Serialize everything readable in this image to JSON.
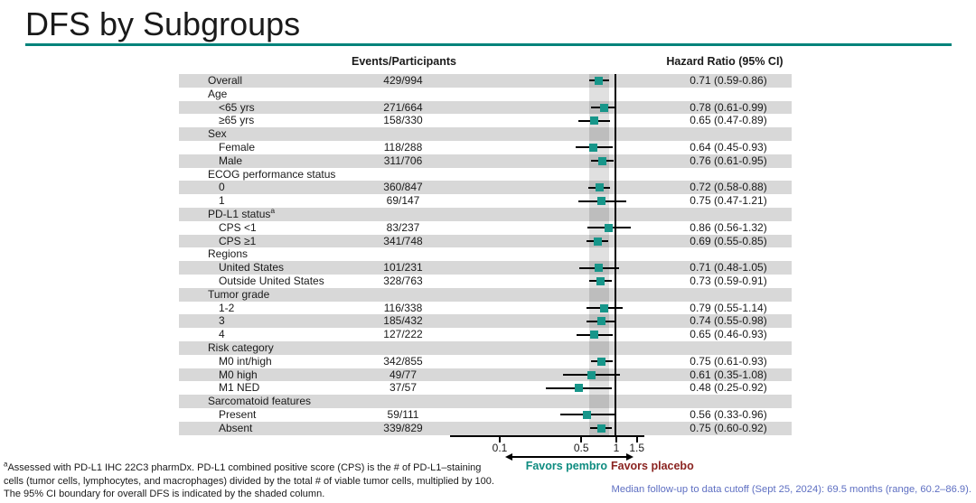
{
  "title": "DFS by Subgroups",
  "colors": {
    "accent_teal": "#00837B",
    "marker_teal": "#17968A",
    "row_band_gray": "#D8D8D8",
    "favors_pembro_teal": "#0E8C80",
    "favors_placebo_red": "#8B2421",
    "median_note_blue": "#5E6FC2"
  },
  "table": {
    "events_header": "Events/Participants",
    "hr_header": "Hazard Ratio (95% CI)"
  },
  "chart_data": {
    "type": "scatter",
    "subtype": "forest-plot",
    "x_scale": "log",
    "xlim": [
      0.04,
      1.7
    ],
    "reference_line": 1,
    "shaded_band": [
      0.59,
      0.86
    ],
    "shaded_band_meaning": "95% CI boundary for overall DFS",
    "legend_position": "none",
    "grid": false,
    "ticks": [
      {
        "value": 0.1,
        "label": "0.1"
      },
      {
        "value": 0.5,
        "label": "0.5"
      },
      {
        "value": 1,
        "label": "1"
      },
      {
        "value": 1.5,
        "label": "1.5"
      }
    ],
    "rows": [
      {
        "label": "Overall",
        "indent": 0,
        "events": "429/994",
        "hr": 0.71,
        "ci": [
          0.59,
          0.86
        ],
        "hr_text": "0.71 (0.59-0.86)"
      },
      {
        "label": "Age",
        "indent": 0
      },
      {
        "label": "<65 yrs",
        "indent": 1,
        "events": "271/664",
        "hr": 0.78,
        "ci": [
          0.61,
          0.99
        ],
        "hr_text": "0.78 (0.61-0.99)"
      },
      {
        "label": "≥65 yrs",
        "indent": 1,
        "events": "158/330",
        "hr": 0.65,
        "ci": [
          0.47,
          0.89
        ],
        "hr_text": "0.65 (0.47-0.89)"
      },
      {
        "label": "Sex",
        "indent": 0
      },
      {
        "label": "Female",
        "indent": 1,
        "events": "118/288",
        "hr": 0.64,
        "ci": [
          0.45,
          0.93
        ],
        "hr_text": "0.64 (0.45-0.93)"
      },
      {
        "label": "Male",
        "indent": 1,
        "events": "311/706",
        "hr": 0.76,
        "ci": [
          0.61,
          0.95
        ],
        "hr_text": "0.76 (0.61-0.95)"
      },
      {
        "label": "ECOG performance status",
        "indent": 0
      },
      {
        "label": "0",
        "indent": 1,
        "events": "360/847",
        "hr": 0.72,
        "ci": [
          0.58,
          0.88
        ],
        "hr_text": "0.72 (0.58-0.88)"
      },
      {
        "label": "1",
        "indent": 1,
        "events": "69/147",
        "hr": 0.75,
        "ci": [
          0.47,
          1.21
        ],
        "hr_text": "0.75 (0.47-1.21)"
      },
      {
        "label": "PD-L1 status",
        "sup": "a",
        "indent": 0
      },
      {
        "label": "CPS <1",
        "indent": 1,
        "events": "83/237",
        "hr": 0.86,
        "ci": [
          0.56,
          1.32
        ],
        "hr_text": "0.86 (0.56-1.32)"
      },
      {
        "label": "CPS ≥1",
        "indent": 1,
        "events": "341/748",
        "hr": 0.69,
        "ci": [
          0.55,
          0.85
        ],
        "hr_text": "0.69 (0.55-0.85)"
      },
      {
        "label": "Regions",
        "indent": 0
      },
      {
        "label": "United States",
        "indent": 1,
        "events": "101/231",
        "hr": 0.71,
        "ci": [
          0.48,
          1.05
        ],
        "hr_text": "0.71 (0.48-1.05)"
      },
      {
        "label": "Outside United States",
        "indent": 1,
        "events": "328/763",
        "hr": 0.73,
        "ci": [
          0.59,
          0.91
        ],
        "hr_text": "0.73 (0.59-0.91)"
      },
      {
        "label": "Tumor grade",
        "indent": 0
      },
      {
        "label": "1-2",
        "indent": 1,
        "events": "116/338",
        "hr": 0.79,
        "ci": [
          0.55,
          1.14
        ],
        "hr_text": "0.79 (0.55-1.14)"
      },
      {
        "label": "3",
        "indent": 1,
        "events": "185/432",
        "hr": 0.74,
        "ci": [
          0.55,
          0.98
        ],
        "hr_text": "0.74 (0.55-0.98)"
      },
      {
        "label": "4",
        "indent": 1,
        "events": "127/222",
        "hr": 0.65,
        "ci": [
          0.46,
          0.93
        ],
        "hr_text": "0.65 (0.46-0.93)"
      },
      {
        "label": "Risk category",
        "indent": 0
      },
      {
        "label": "M0 int/high",
        "indent": 1,
        "events": "342/855",
        "hr": 0.75,
        "ci": [
          0.61,
          0.93
        ],
        "hr_text": "0.75 (0.61-0.93)"
      },
      {
        "label": "M0 high",
        "indent": 1,
        "events": "49/77",
        "hr": 0.61,
        "ci": [
          0.35,
          1.08
        ],
        "hr_text": "0.61 (0.35-1.08)"
      },
      {
        "label": "M1 NED",
        "indent": 1,
        "events": "37/57",
        "hr": 0.48,
        "ci": [
          0.25,
          0.92
        ],
        "hr_text": "0.48 (0.25-0.92)"
      },
      {
        "label": "Sarcomatoid features",
        "indent": 0
      },
      {
        "label": "Present",
        "indent": 1,
        "events": "59/111",
        "hr": 0.56,
        "ci": [
          0.33,
          0.96
        ],
        "hr_text": "0.56 (0.33-0.96)"
      },
      {
        "label": "Absent",
        "indent": 1,
        "events": "339/829",
        "hr": 0.75,
        "ci": [
          0.6,
          0.92
        ],
        "hr_text": "0.75 (0.60-0.92)"
      }
    ]
  },
  "annotations": {
    "favors_left": "Favors pembro",
    "favors_right": "Favors placebo"
  },
  "footnotes": {
    "marker": "a",
    "line1": "Assessed with PD-L1 IHC 22C3 pharmDx. PD-L1 combined positive score (CPS) is the # of PD-L1–staining",
    "line2": "cells (tumor cells, lymphocytes, and macrophages) divided by the total # of viable tumor cells, multiplied by 100.",
    "line3": "The 95% CI boundary for overall DFS is indicated by the shaded column."
  },
  "median_note": "Median follow-up to data cutoff (Sept 25, 2024): 69.5 months (range, 60.2–86.9)."
}
